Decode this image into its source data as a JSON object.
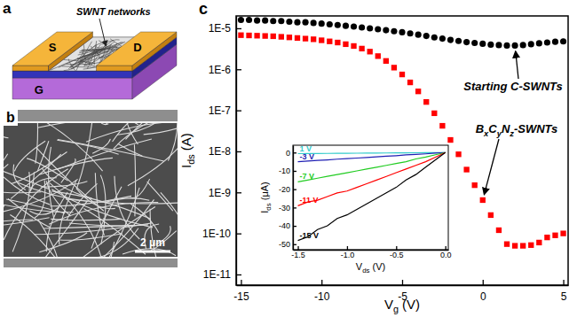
{
  "figure": {
    "schematic": {
      "panel_label": "a",
      "source": "S",
      "drain": "D",
      "gate": "G",
      "network": "SWNT networks"
    },
    "sem_image": {
      "panel_label": "b",
      "scale_bar": "2 μm"
    }
  },
  "chart_data": [
    {
      "type": "scatter",
      "panel_label": "c",
      "x_label": "Vg (V)",
      "y_label": "Ids (A)",
      "log": "y",
      "xlim": [
        -15.3,
        5.3
      ],
      "ylim": [
        5.5e-12,
        2e-05
      ],
      "xticks": [
        -15,
        -10,
        -5,
        0,
        5
      ],
      "yticks": [
        {
          "value": 1e-11,
          "label": "1E-11"
        },
        {
          "value": 1e-10,
          "label": "1E-10"
        },
        {
          "value": 1e-09,
          "label": "1E-9"
        },
        {
          "value": 1e-08,
          "label": "1E-8"
        },
        {
          "value": 1e-07,
          "label": "1E-7"
        },
        {
          "value": 1e-06,
          "label": "1E-6"
        },
        {
          "value": 1e-05,
          "label": "1E-5"
        }
      ],
      "x": [
        -15,
        -14.5,
        -14,
        -13.5,
        -13,
        -12.5,
        -12,
        -11.5,
        -11,
        -10.5,
        -10,
        -9.5,
        -9,
        -8.5,
        -8,
        -7.5,
        -7,
        -6.5,
        -6,
        -5.5,
        -5,
        -4.5,
        -4,
        -3.5,
        -3,
        -2.5,
        -2,
        -1.5,
        -1,
        -0.5,
        0,
        0.5,
        1,
        1.5,
        2,
        2.5,
        3,
        3.5,
        4,
        4.5,
        5
      ],
      "series": [
        {
          "name": "Starting C-SWNTs",
          "color": "#000000",
          "marker": "circle",
          "values": [
            1.6e-05,
            1.6e-05,
            1.55e-05,
            1.55e-05,
            1.5e-05,
            1.5e-05,
            1.45e-05,
            1.4e-05,
            1.4e-05,
            1.35e-05,
            1.3e-05,
            1.25e-05,
            1.2e-05,
            1.15e-05,
            1.1e-05,
            1.05e-05,
            1e-05,
            9.5e-06,
            9e-06,
            8.5e-06,
            8e-06,
            7.5e-06,
            7e-06,
            6.5e-06,
            6e-06,
            5.6e-06,
            5.2e-06,
            4.9e-06,
            4.6e-06,
            4.4e-06,
            4.2e-06,
            4e-06,
            3.9e-06,
            3.8e-06,
            3.8e-06,
            3.9e-06,
            4.1e-06,
            4.3e-06,
            4.5e-06,
            4.7e-06,
            4.8e-06
          ]
        },
        {
          "name": "BxCyNz-SWNTs",
          "color": "#ff0000",
          "marker": "square",
          "values": [
            6.8e-06,
            6.7e-06,
            6.6e-06,
            6.5e-06,
            6.4e-06,
            6.2e-06,
            6e-06,
            5.8e-06,
            5.6e-06,
            5.4e-06,
            5.1e-06,
            4.8e-06,
            4.5e-06,
            4.1e-06,
            3.7e-06,
            3.2e-06,
            2.7e-06,
            2.1e-06,
            1.6e-06,
            1.1e-06,
            7.5e-07,
            4.8e-07,
            2.9e-07,
            1.6e-07,
            8.5e-08,
            4.2e-08,
            1.9e-08,
            8.5e-09,
            3.6e-09,
            1.5e-09,
            6.5e-10,
            2.8e-10,
            1.2e-10,
            5.5e-11,
            5e-11,
            5e-11,
            5.2e-11,
            6e-11,
            8e-11,
            9e-11,
            1e-10
          ]
        }
      ]
    },
    {
      "type": "line",
      "x_label": "Vds (V)",
      "y_label": "Ids (μA)",
      "xlim": [
        -1.55,
        0.03
      ],
      "ylim": [
        -53,
        4
      ],
      "xticks": [
        -1.5,
        {
          "value": -1,
          "label": "-1.0"
        },
        -0.5,
        {
          "value": 0,
          "label": "0.0"
        }
      ],
      "yticks": [
        -50,
        -40,
        -30,
        -20,
        -10,
        0
      ],
      "x": [
        -1.5,
        -1.4,
        -1.3,
        -1.2,
        -1.1,
        -1,
        -0.9,
        -0.8,
        -0.7,
        -0.6,
        -0.5,
        -0.4,
        -0.3,
        -0.2,
        -0.1,
        0
      ],
      "series": [
        {
          "name": "1 V",
          "color": "#33cccc",
          "line_style": "solid",
          "values": [
            -0.6,
            -0.55,
            -0.5,
            -0.46,
            -0.42,
            -0.38,
            -0.34,
            -0.3,
            -0.26,
            -0.22,
            -0.18,
            -0.15,
            -0.11,
            -0.07,
            -0.04,
            0
          ]
        },
        {
          "name": "-3 V",
          "color": "#1f1fb4",
          "line_style": "solid",
          "values": [
            -5,
            -4.6,
            -4.3,
            -4,
            -3.6,
            -3.3,
            -3,
            -2.7,
            -2.3,
            -2,
            -1.7,
            -1.3,
            -1,
            -0.7,
            -0.3,
            0
          ]
        },
        {
          "name": "-7 V",
          "color": "#22cc22",
          "line_style": "solid",
          "values": [
            -16,
            -15,
            -14,
            -13,
            -12,
            -11,
            -10,
            -9,
            -8,
            -7,
            -6,
            -5,
            -3.5,
            -2.5,
            -1.2,
            0
          ]
        },
        {
          "name": "-11 V",
          "color": "#ff0000",
          "line_style": "solid",
          "values": [
            -29,
            -27,
            -26,
            -24,
            -22,
            -21,
            -19,
            -17,
            -15,
            -13,
            -11,
            -9,
            -7,
            -5,
            -2.5,
            0
          ]
        },
        {
          "name": "-15 V",
          "color": "#000000",
          "line_style": "solid",
          "values": [
            -48,
            -46,
            -42,
            -40,
            -36,
            -34,
            -31,
            -28,
            -25,
            -22,
            -19,
            -15,
            -12,
            -8,
            -4,
            0
          ]
        }
      ]
    }
  ]
}
